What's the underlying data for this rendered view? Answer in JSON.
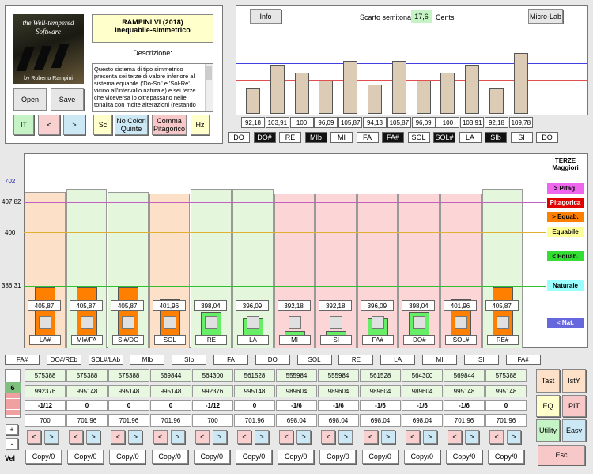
{
  "logo": {
    "line1": "the Well-tempered",
    "line2": "Software",
    "author": "by Roberto Rampini"
  },
  "tuning": {
    "title": "RAMPINI VI (2018)",
    "subtitle": "inequabile-simmetrico"
  },
  "desc": {
    "label": "Descrizione:",
    "text": "Questo sistema di tipo simmetrico presenta sei terze di valore inferiore al sistema equabile ('Do-Sol' e 'Sol-Re' vicino all'intervallo naturale) e sei terze che viceversa lo oltrepassano nelle tonalità con molte alterazioni (restando"
  },
  "buttons": {
    "open": "Open",
    "save": "Save",
    "it": "IT",
    "prev": "<",
    "next": ">",
    "sc": "Sc",
    "no_colori": "No Colori Quinte",
    "comma": "Comma Pitagorico",
    "hz": "Hz",
    "info": "Info",
    "micro": "Micro-Lab",
    "tast": "Tast",
    "isty": "IstY",
    "eq": "EQ",
    "pit": "PIT",
    "utility": "Utility",
    "easy": "Easy",
    "esc": "Esc",
    "plus": "+",
    "minus": "-",
    "vel": "Vel",
    "counter": "6"
  },
  "scarto": {
    "label": "Scarto semitonale:",
    "value": "17,6",
    "unit": "Cents"
  },
  "semitones": {
    "values": [
      "92,18",
      "103,91",
      "100",
      "96,09",
      "105,87",
      "94,13",
      "105,87",
      "96,09",
      "100",
      "103,91",
      "92,18",
      "109,78"
    ],
    "heights": [
      92.18,
      103.91,
      100,
      96.09,
      105.87,
      94.13,
      105.87,
      96.09,
      100,
      103.91,
      92.18,
      109.78
    ]
  },
  "notes_top": [
    {
      "n": "DO",
      "d": false
    },
    {
      "n": "DO#",
      "d": true
    },
    {
      "n": "RE",
      "d": false
    },
    {
      "n": "MIb",
      "d": true
    },
    {
      "n": "MI",
      "d": false
    },
    {
      "n": "FA",
      "d": false
    },
    {
      "n": "FA#",
      "d": true
    },
    {
      "n": "SOL",
      "d": false
    },
    {
      "n": "SOL#",
      "d": true
    },
    {
      "n": "LA",
      "d": false
    },
    {
      "n": "SIb",
      "d": true
    },
    {
      "n": "SI",
      "d": false
    },
    {
      "n": "DO",
      "d": false
    }
  ],
  "axis": {
    "a702": "702",
    "a407": "407,82",
    "a400": "400",
    "a386": "386,31"
  },
  "legend": {
    "title": "TERZE Maggiori",
    "items": [
      {
        "label": "> Pitag.",
        "bg": "#ee66ee"
      },
      {
        "label": "Pitagorica",
        "bg": "#e00000",
        "fg": "#fff"
      },
      {
        "label": "> Equab.",
        "bg": "#ff7f00"
      },
      {
        "label": "Equabile",
        "bg": "#ffff99"
      },
      {
        "label": "< Equab.",
        "bg": "#33dd33"
      },
      {
        "label": "Naturale",
        "bg": "#99ffff"
      },
      {
        "label": "< Nat.",
        "bg": "#6666dd",
        "fg": "#fff"
      }
    ]
  },
  "thirds": {
    "values": [
      "405,87",
      "405,87",
      "405,87",
      "401,96",
      "398,04",
      "396,09",
      "392,18",
      "392,18",
      "396,09",
      "398,04",
      "401,96",
      "405,87"
    ],
    "cents": [
      405.87,
      405.87,
      405.87,
      401.96,
      398.04,
      396.09,
      392.18,
      392.18,
      396.09,
      398.04,
      401.96,
      405.87
    ],
    "labels": [
      "LA#",
      "MI#/FA",
      "SI#/DO",
      "SOL",
      "RE",
      "LA",
      "MI",
      "SI",
      "FA#",
      "DO#",
      "SOL#",
      "RE#"
    ],
    "colors": [
      "#ff7f00",
      "#ff7f00",
      "#ff7f00",
      "#ff7f00",
      "#66ee66",
      "#66ee66",
      "#66ee66",
      "#66ee66",
      "#66ee66",
      "#66ee66",
      "#ff7f00",
      "#ff7f00"
    ],
    "bgs": [
      "#fde0c8",
      "#e4f7dc",
      "#e4f7dc",
      "#fde0c8",
      "#e4f7dc",
      "#e4f7dc",
      "#fcd6d6",
      "#fcd6d6",
      "#fcd6d6",
      "#fcd6d6",
      "#fcd6d6",
      "#e4f7dc"
    ],
    "bg_h": [
      0.93,
      0.95,
      0.93,
      0.92,
      0.95,
      0.95,
      0.92,
      0.92,
      0.92,
      0.92,
      0.92,
      0.95
    ]
  },
  "fifths_labels": [
    "FA#",
    "DO#/REb",
    "SOL#/LAb",
    "MIb",
    "SIb",
    "FA",
    "DO",
    "SOL",
    "RE",
    "LA",
    "MI",
    "SI",
    "FA#"
  ],
  "ratios1": [
    "575388",
    "575388",
    "575388",
    "569844",
    "564300",
    "561528",
    "555984",
    "555984",
    "561528",
    "564300",
    "569844",
    "575388"
  ],
  "ratios2": [
    "992376",
    "995148",
    "995148",
    "995148",
    "992376",
    "995148",
    "989604",
    "989604",
    "989604",
    "989604",
    "995148",
    "995148"
  ],
  "commas": [
    "-1/12",
    "0",
    "0",
    "0",
    "-1/12",
    "0",
    "-1/6",
    "-1/6",
    "-1/6",
    "-1/6",
    "-1/6",
    "0"
  ],
  "fifths": [
    "700",
    "701,96",
    "701,96",
    "701,96",
    "700",
    "701,96",
    "698,04",
    "698,04",
    "698,04",
    "698,04",
    "701,96",
    "701,96"
  ],
  "copy": "Copy/0",
  "arrows": {
    "left": "<",
    "right": ">"
  }
}
